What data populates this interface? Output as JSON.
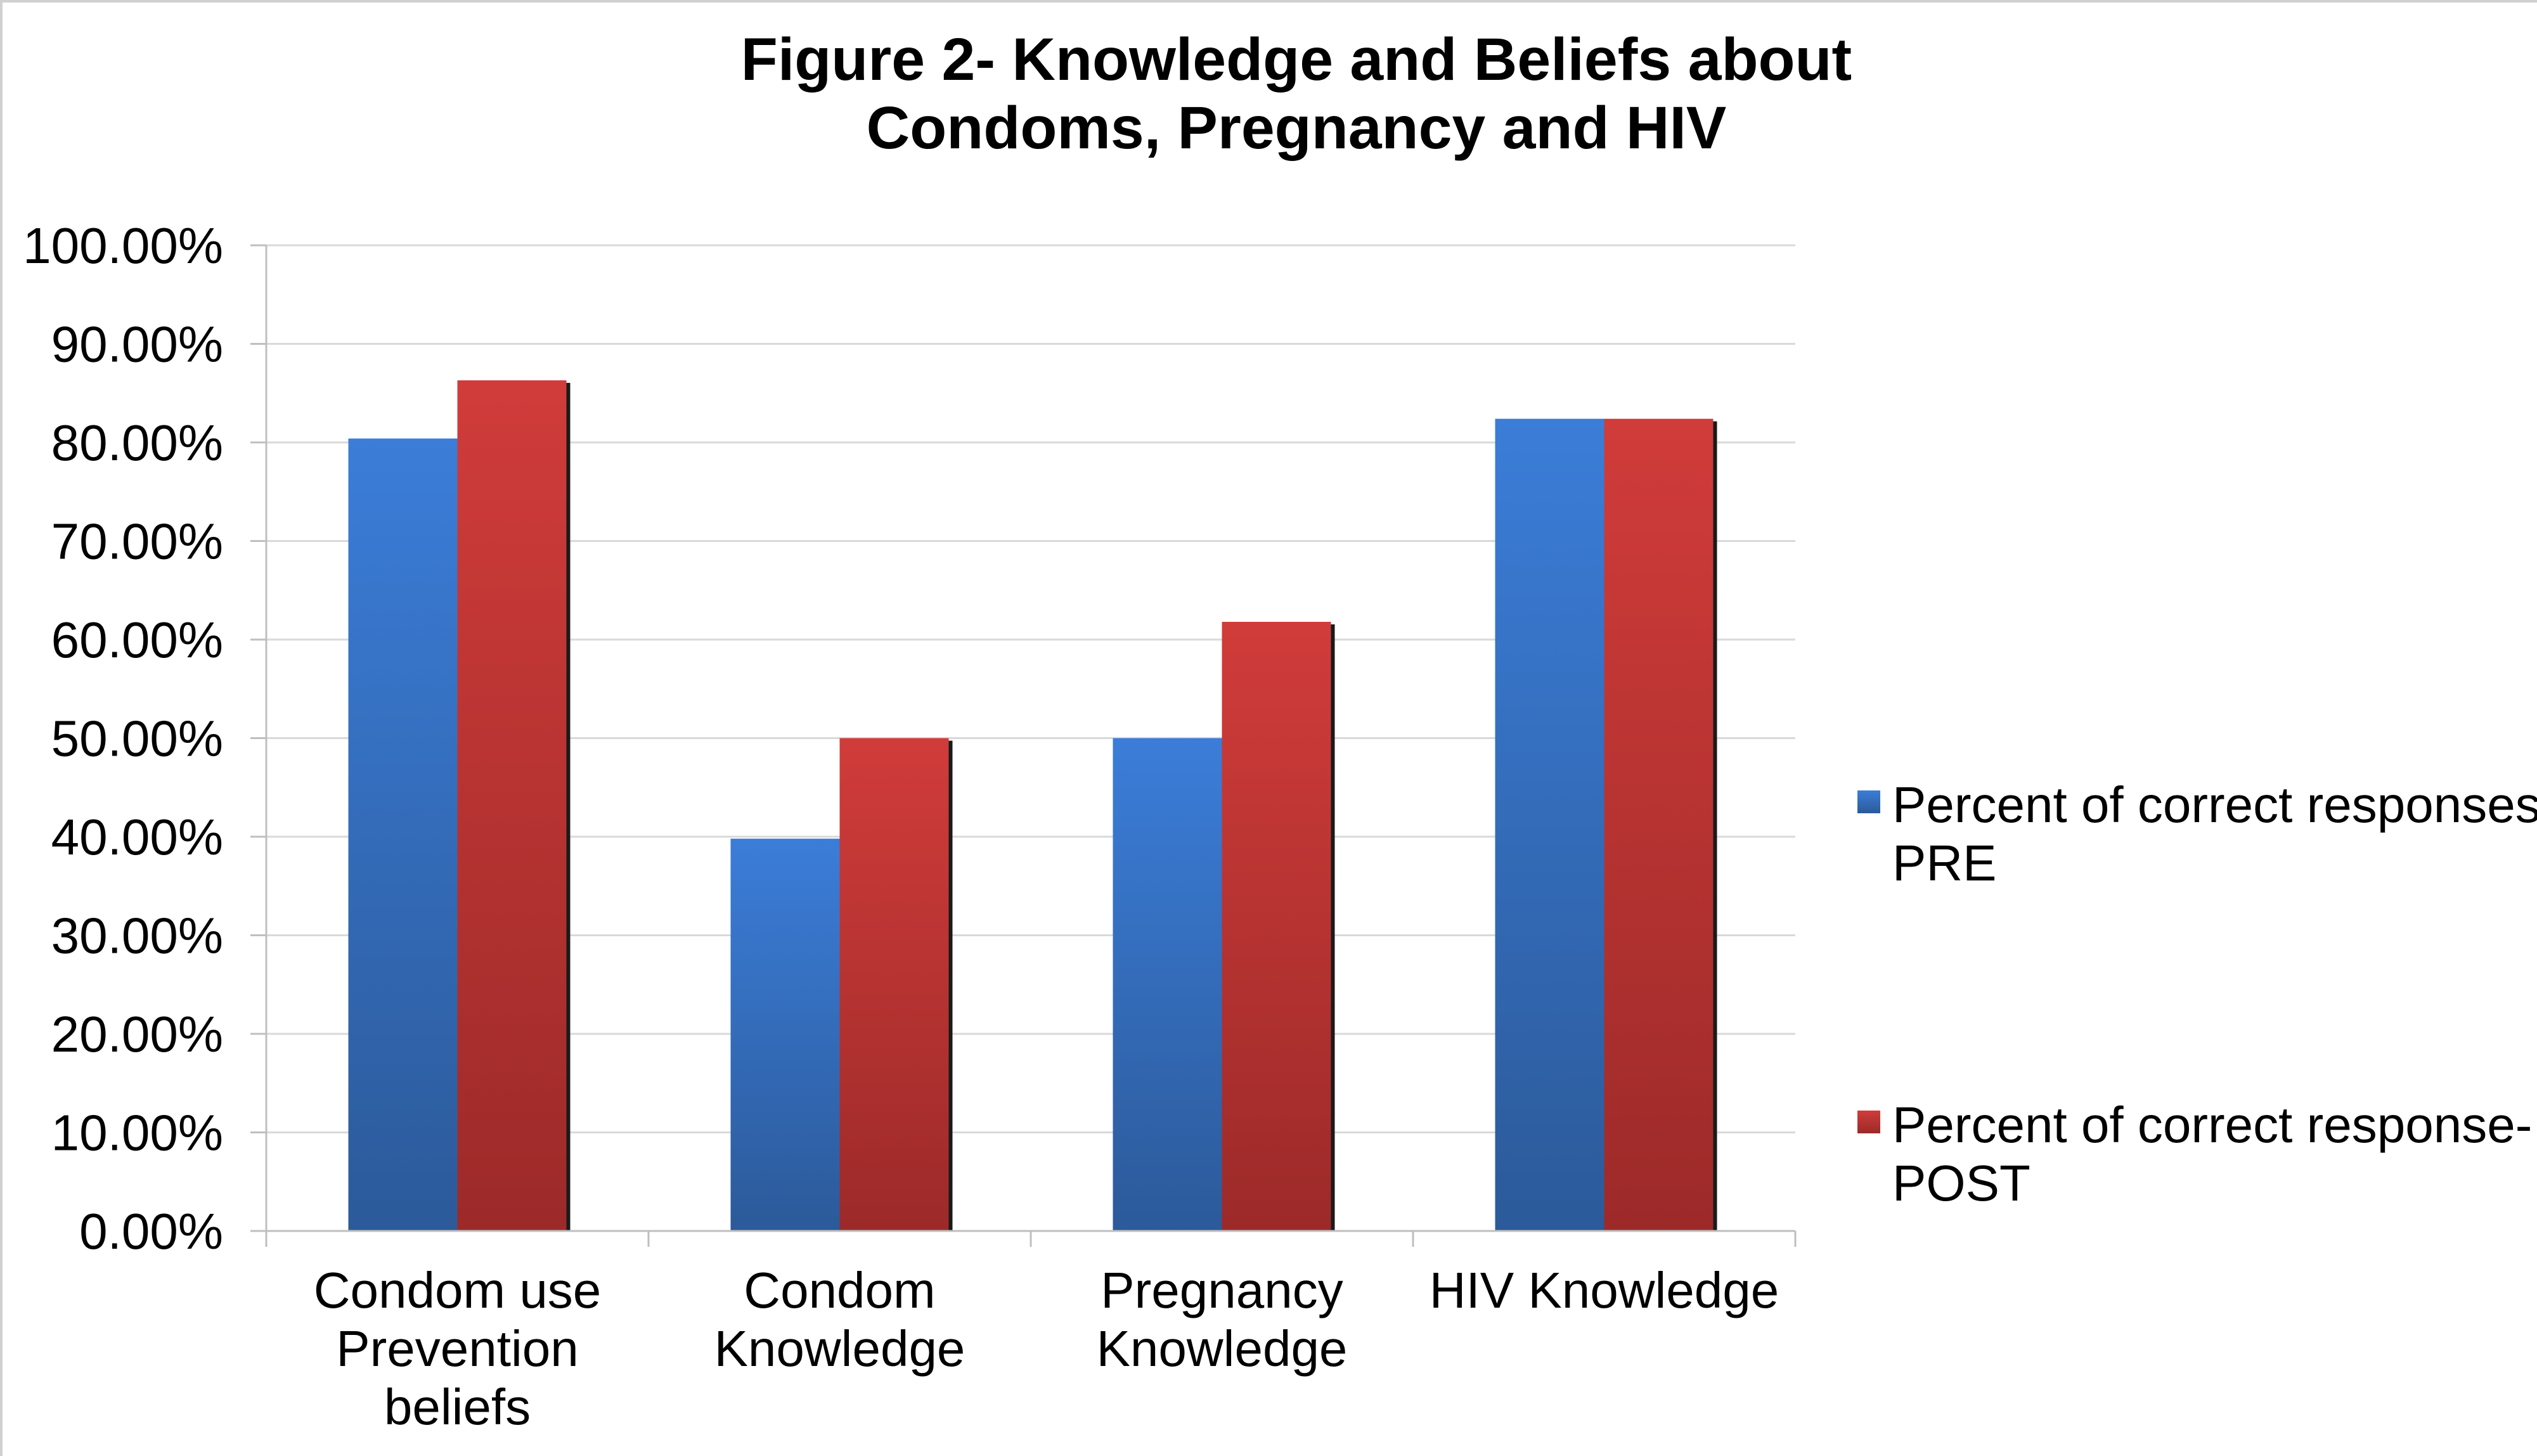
{
  "chart_data": {
    "type": "bar",
    "title_line1": "Figure 2- Knowledge and Beliefs about",
    "title_line2": "Condoms, Pregnancy and HIV",
    "categories": [
      [
        "Condom use",
        "Prevention",
        "beliefs"
      ],
      [
        "Condom",
        "Knowledge"
      ],
      [
        "Pregnancy",
        "Knowledge"
      ],
      [
        "HIV Knowledge"
      ]
    ],
    "series": [
      {
        "name_lines": [
          "Percent of correct responses-",
          "PRE"
        ],
        "values": [
          80.4,
          39.8,
          50.0,
          82.4
        ],
        "color": "#3b7dd8",
        "color_dark": "#2c5a9a"
      },
      {
        "name_lines": [
          "Percent of correct response-",
          "POST"
        ],
        "values": [
          86.3,
          50.0,
          61.8,
          82.4
        ],
        "color": "#d03c3a",
        "color_dark": "#9c2a29"
      }
    ],
    "ylim": [
      0,
      100
    ],
    "yticks": [
      "0.00%",
      "10.00%",
      "20.00%",
      "30.00%",
      "40.00%",
      "50.00%",
      "60.00%",
      "70.00%",
      "80.00%",
      "90.00%",
      "100.00%"
    ],
    "grid": true,
    "legend_position": "right"
  }
}
